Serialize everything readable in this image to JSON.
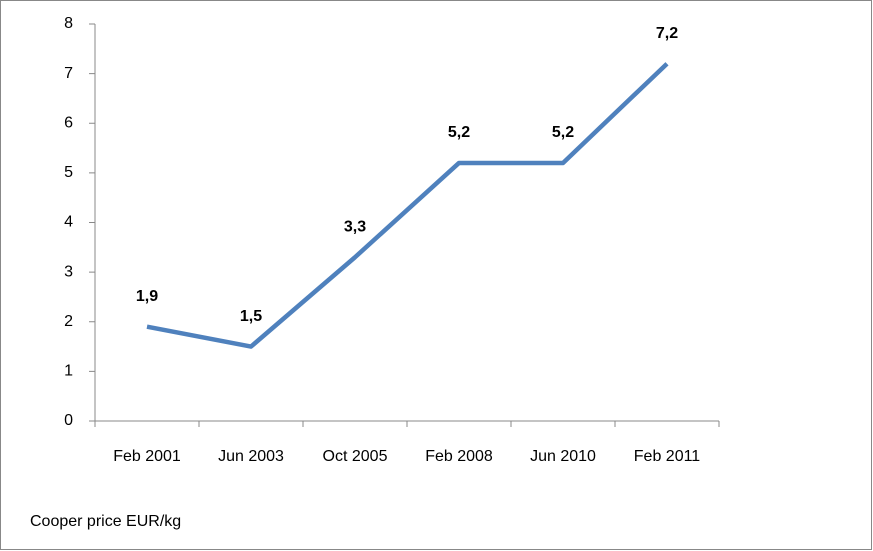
{
  "chart_data": {
    "type": "line",
    "categories": [
      "Feb 2001",
      "Jun 2003",
      "Oct 2005",
      "Feb 2008",
      "Jun 2010",
      "Feb 2011"
    ],
    "series": [
      {
        "name": "Cooper price  EUR/kg",
        "color": "#4f81bd",
        "values": [
          1.9,
          1.5,
          3.3,
          5.2,
          5.2,
          7.2
        ],
        "value_labels": [
          "1,9",
          "1,5",
          "3,3",
          "5,2",
          "5,2",
          "7,2"
        ]
      }
    ],
    "caption": "Cooper price  EUR/kg",
    "ylim": [
      0,
      8
    ],
    "yticks": [
      0,
      1,
      2,
      3,
      4,
      5,
      6,
      7,
      8
    ],
    "grid": false
  }
}
